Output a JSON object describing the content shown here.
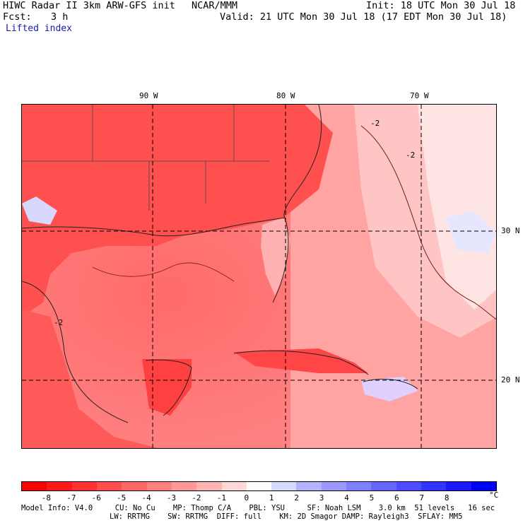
{
  "header": {
    "model_title": "HIWC Radar II 3km ARW-GFS init",
    "org": "NCAR/MMM",
    "init": "Init: 18 UTC Mon 30 Jul 18",
    "fcst_label": "Fcst:",
    "fcst_value": "3 h",
    "valid": "Valid: 21 UTC Mon 30 Jul 18 (17 EDT Mon 30 Jul 18)",
    "field": "Lifted index"
  },
  "map": {
    "lon_labels": [
      "90 W",
      "80 W",
      "70 W"
    ],
    "lat_labels": [
      "30 N",
      "20 N"
    ],
    "contour_label": "-2"
  },
  "colorbar": {
    "ticks": [
      "-8",
      "-7",
      "-6",
      "-5",
      "-4",
      "-3",
      "-2",
      "-1",
      "0",
      "1",
      "2",
      "3",
      "4",
      "5",
      "6",
      "7",
      "8"
    ],
    "unit": "°C",
    "colors": [
      "#ff0000",
      "#ff1a1a",
      "#ff3333",
      "#ff4d4d",
      "#ff6666",
      "#ff8080",
      "#ff9999",
      "#ffb3b3",
      "#ffd9d9",
      "#ffffff",
      "#d9d9ff",
      "#b3b3ff",
      "#9999ff",
      "#8080ff",
      "#6666ff",
      "#4d4dff",
      "#3333ff",
      "#1a1aff",
      "#0000ff"
    ]
  },
  "model_info": {
    "line1": "Model Info: V4.0     CU: No Cu    MP: Thomp C/A    PBL: YSU     SF: Noah LSM    3.0 km  51 levels   16 sec",
    "line2": "LW: RRTMG    SW: RRTMG  DIFF: full    KM: 2D Smagor DAMP: Rayleigh3  SFLAY: MM5"
  }
}
